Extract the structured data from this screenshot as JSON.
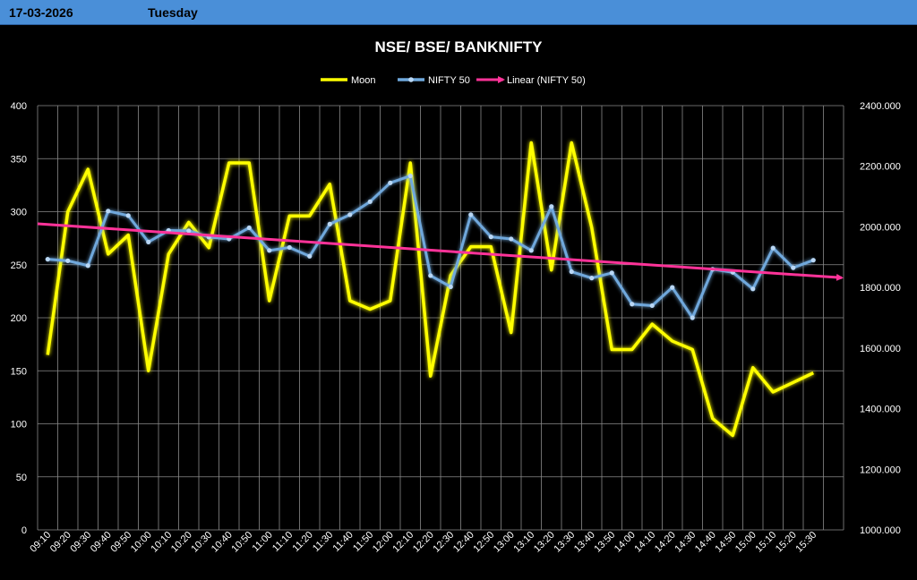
{
  "header": {
    "date": "17-03-2026",
    "day": "Tuesday"
  },
  "chart_data": {
    "type": "line",
    "title": "NSE/ BSE/ BANKNIFTY",
    "colors": {
      "moon": "#ffff00",
      "nifty": "#6fa8dc",
      "trend": "#ff3399"
    },
    "categories": [
      "09:10",
      "09:20",
      "09:30",
      "09:40",
      "09:50",
      "10:00",
      "10:10",
      "10:20",
      "10:30",
      "10:40",
      "10:50",
      "11:00",
      "11:10",
      "11:20",
      "11:30",
      "11:40",
      "11:50",
      "12:00",
      "12:10",
      "12:20",
      "12:30",
      "12:40",
      "12:50",
      "13:00",
      "13:10",
      "13:20",
      "13:30",
      "13:40",
      "13:50",
      "14:00",
      "14:10",
      "14:20",
      "14:30",
      "14:40",
      "14:50",
      "15:00",
      "15:10",
      "15:20",
      "15:30"
    ],
    "left_axis": {
      "min": 0,
      "max": 400,
      "step": 50,
      "ticks": [
        "0",
        "50",
        "100",
        "150",
        "200",
        "250",
        "300",
        "350",
        "400"
      ]
    },
    "right_axis": {
      "min": 1000,
      "max": 2400,
      "step": 200,
      "ticks": [
        "1000.000",
        "1200.000",
        "1400.000",
        "1600.000",
        "1800.000",
        "2000.000",
        "2200.000",
        "2400.000"
      ]
    },
    "series": [
      {
        "name": "Moon",
        "axis": "left",
        "values": [
          165,
          300,
          340,
          260,
          278,
          150,
          260,
          290,
          266,
          346,
          346,
          216,
          296,
          296,
          326,
          216,
          208,
          216,
          346,
          145,
          240,
          267,
          267,
          186,
          365,
          245,
          365,
          285,
          170,
          170,
          194,
          178,
          170,
          105,
          89,
          153,
          130,
          139,
          148
        ]
      },
      {
        "name": "NIFTY 50",
        "axis": "right",
        "values": [
          1893,
          1888,
          1872,
          2052,
          2037,
          1950,
          1988,
          1987,
          1966,
          1960,
          1997,
          1922,
          1932,
          1903,
          2009,
          2040,
          2083,
          2145,
          2168,
          1839,
          1802,
          2040,
          1967,
          1960,
          1922,
          2067,
          1852,
          1831,
          1848,
          1745,
          1740,
          1800,
          1700,
          1860,
          1850,
          1795,
          1930,
          1865,
          1890
        ]
      },
      {
        "name": "Linear (NIFTY 50)",
        "axis": "right",
        "type": "trendline",
        "x": [
          "09:10",
          "15:30"
        ],
        "values": [
          2010,
          1832
        ]
      }
    ],
    "legend": "top"
  }
}
